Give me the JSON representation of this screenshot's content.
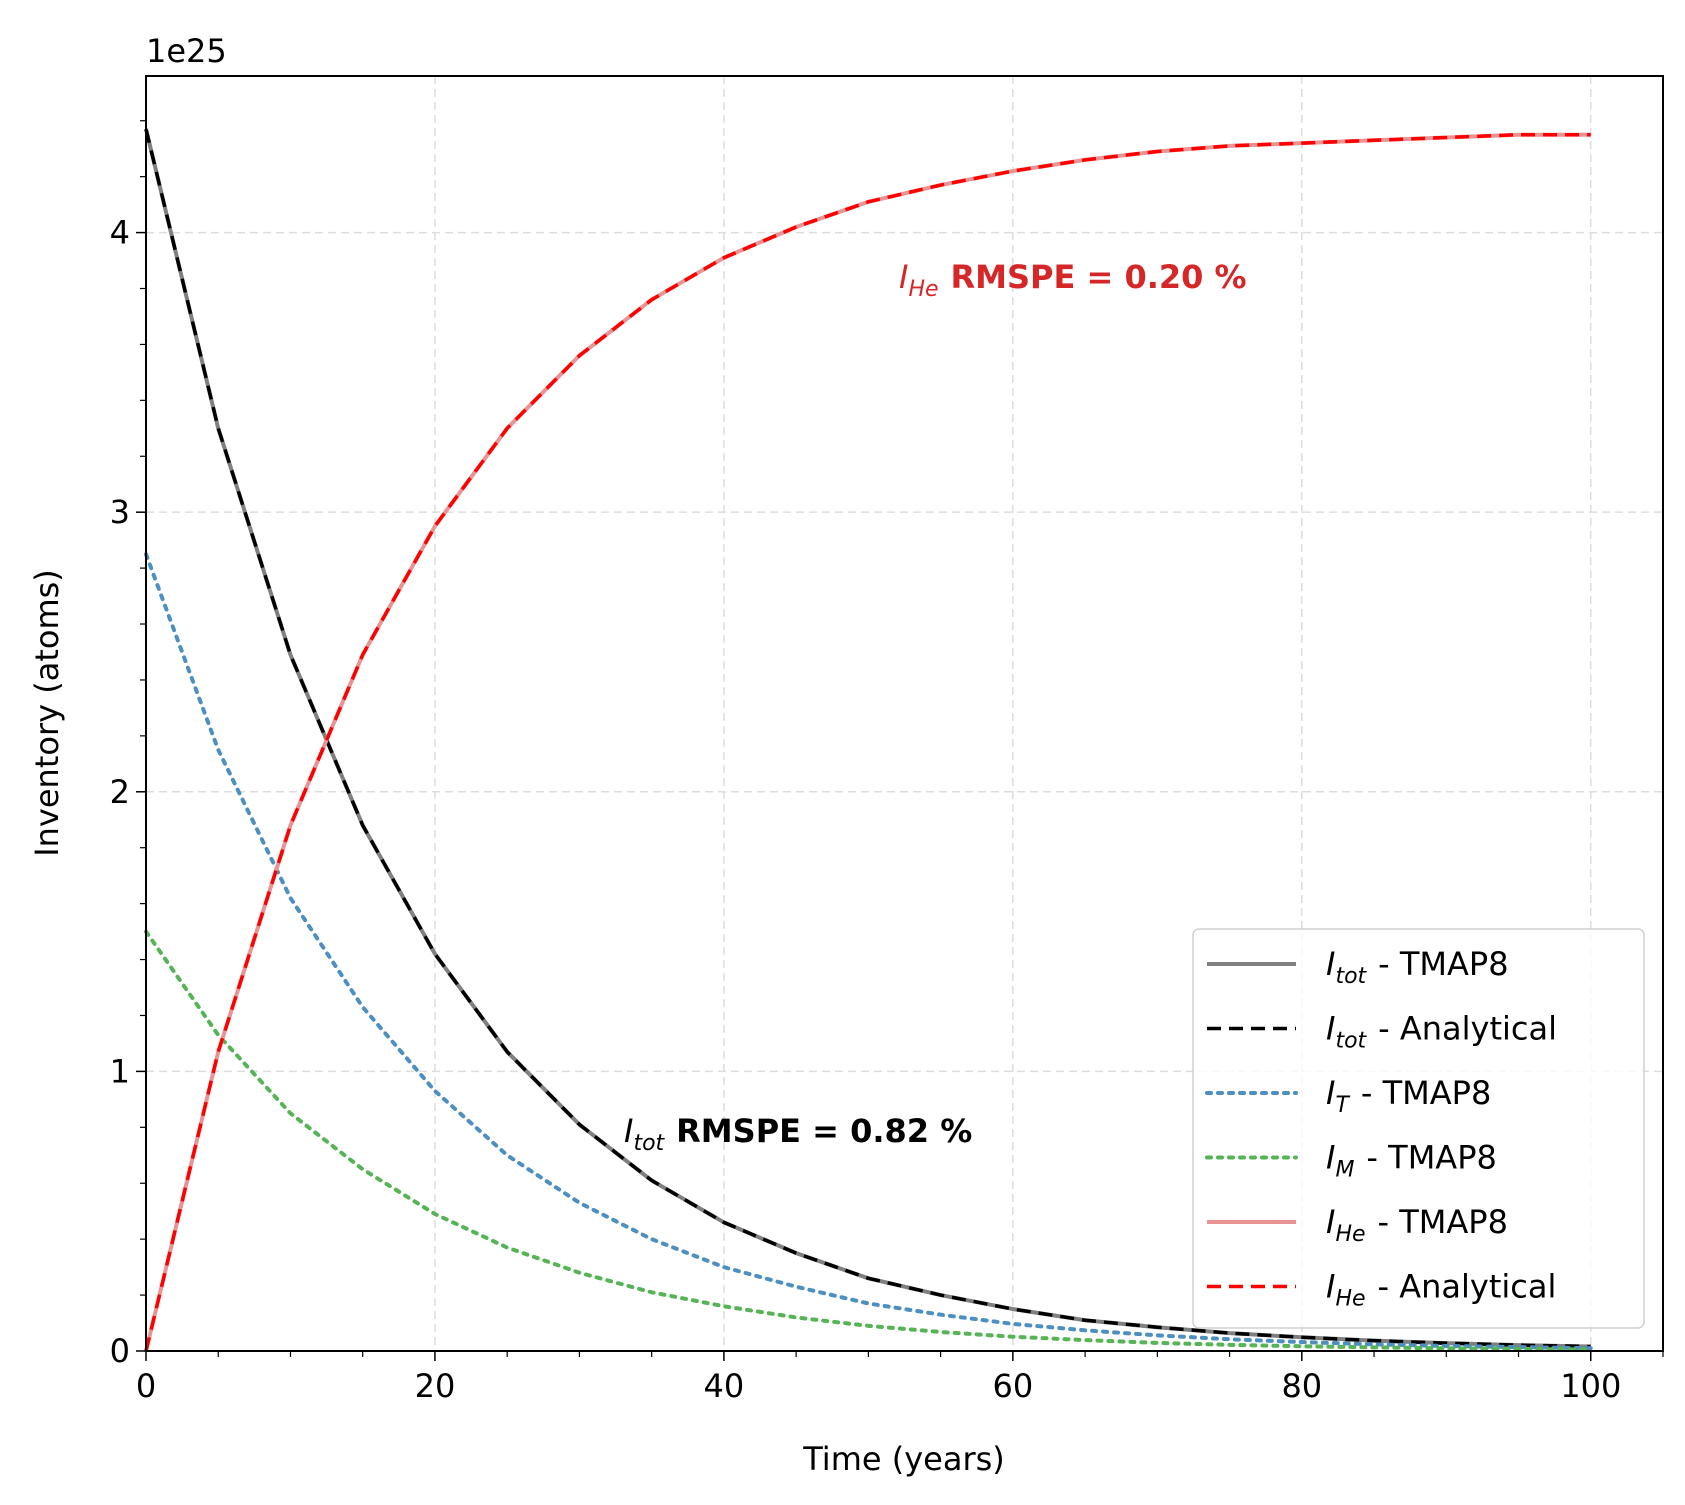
{
  "chart_data": {
    "type": "line",
    "xlabel": "Time (years)",
    "ylabel": "Inventory (atoms)",
    "y_offset_label": "1e25",
    "x": [
      0,
      5,
      10,
      15,
      20,
      25,
      30,
      35,
      40,
      45,
      50,
      55,
      60,
      65,
      70,
      75,
      80,
      85,
      90,
      95,
      100
    ],
    "series": [
      {
        "symbol": "I",
        "subscript": "tot",
        "name": "- TMAP8",
        "color": "#808080",
        "style": "solid",
        "linewidth": 4,
        "values": [
          4.37,
          3.3,
          2.49,
          1.88,
          1.42,
          1.07,
          0.81,
          0.61,
          0.46,
          0.35,
          0.26,
          0.2,
          0.15,
          0.11,
          0.085,
          0.064,
          0.049,
          0.037,
          0.028,
          0.021,
          0.016
        ]
      },
      {
        "symbol": "I",
        "subscript": "tot",
        "name": "- Analytical",
        "color": "#000000",
        "style": "dashed",
        "linewidth": 3.5,
        "values": [
          4.37,
          3.3,
          2.49,
          1.88,
          1.42,
          1.07,
          0.81,
          0.61,
          0.46,
          0.35,
          0.26,
          0.2,
          0.15,
          0.11,
          0.085,
          0.064,
          0.049,
          0.037,
          0.028,
          0.021,
          0.016
        ]
      },
      {
        "symbol": "I",
        "subscript": "T",
        "name": "- TMAP8",
        "color": "#4c8fc0",
        "style": "dotted",
        "linewidth": 4,
        "values": [
          2.85,
          2.15,
          1.62,
          1.23,
          0.93,
          0.7,
          0.53,
          0.4,
          0.3,
          0.23,
          0.17,
          0.13,
          0.097,
          0.074,
          0.056,
          0.042,
          0.032,
          0.024,
          0.018,
          0.014,
          0.01
        ]
      },
      {
        "symbol": "I",
        "subscript": "M",
        "name": "- TMAP8",
        "color": "#56b356",
        "style": "dotted",
        "linewidth": 4,
        "values": [
          1.5,
          1.13,
          0.85,
          0.65,
          0.49,
          0.37,
          0.28,
          0.21,
          0.16,
          0.12,
          0.09,
          0.068,
          0.051,
          0.039,
          0.029,
          0.022,
          0.017,
          0.013,
          0.0095,
          0.0072,
          0.0054
        ]
      },
      {
        "symbol": "I",
        "subscript": "He",
        "name": "- TMAP8",
        "color": "#e99394",
        "style": "solid",
        "linewidth": 4,
        "values": [
          0,
          1.07,
          1.88,
          2.49,
          2.95,
          3.3,
          3.56,
          3.76,
          3.91,
          4.02,
          4.11,
          4.17,
          4.22,
          4.26,
          4.29,
          4.31,
          4.32,
          4.33,
          4.34,
          4.35,
          4.35
        ]
      },
      {
        "symbol": "I",
        "subscript": "He",
        "name": "- Analytical",
        "color": "#ff0000",
        "style": "dashed",
        "linewidth": 3.5,
        "values": [
          0,
          1.07,
          1.88,
          2.49,
          2.95,
          3.3,
          3.56,
          3.76,
          3.91,
          4.02,
          4.11,
          4.17,
          4.22,
          4.26,
          4.29,
          4.31,
          4.32,
          4.33,
          4.34,
          4.35,
          4.35
        ]
      }
    ],
    "annotations": [
      {
        "symbol": "I",
        "subscript": "He",
        "text": "RMSPE = 0.20 %",
        "color": "#d62728"
      },
      {
        "symbol": "I",
        "subscript": "tot",
        "text": "RMSPE = 0.82 %",
        "color": "#000000"
      }
    ],
    "xlim": [
      0,
      105
    ],
    "ylim": [
      0,
      4.56
    ],
    "xticks": [
      0,
      20,
      40,
      60,
      80,
      100
    ],
    "yticks": [
      0,
      1,
      2,
      3,
      4
    ],
    "xminorticks": [
      5,
      10,
      15,
      25,
      30,
      35,
      45,
      50,
      55,
      65,
      70,
      75,
      85,
      90,
      95,
      105
    ],
    "yminorticks": [
      0.2,
      0.4,
      0.6,
      0.8,
      1.2,
      1.4,
      1.6,
      1.8,
      2.2,
      2.4,
      2.6,
      2.8,
      3.2,
      3.4,
      3.6,
      3.8,
      4.2,
      4.4
    ],
    "grid": true,
    "legend_loc": "lower right"
  }
}
